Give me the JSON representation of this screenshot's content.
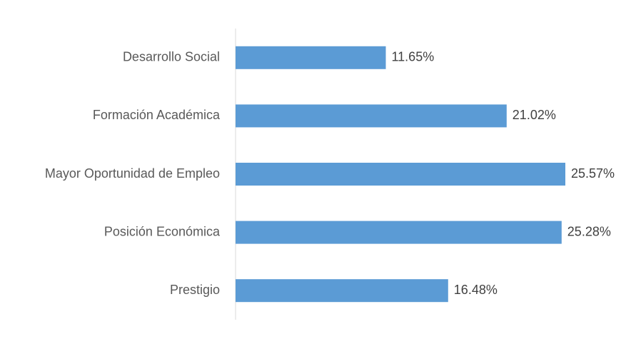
{
  "chart_data": {
    "type": "bar",
    "orientation": "horizontal",
    "title": "",
    "xlabel": "",
    "ylabel": "",
    "categories": [
      "Desarrollo Social",
      "Formación Académica",
      "Mayor Oportunidad de Empleo",
      "Posición Económica",
      "Prestigio"
    ],
    "values": [
      11.65,
      21.02,
      25.57,
      25.28,
      16.48
    ],
    "value_labels": [
      "11.65%",
      "21.02%",
      "25.57%",
      "25.28%",
      "16.48%"
    ],
    "xlim": [
      0,
      25.57
    ],
    "grid": false,
    "legend": "none",
    "bar_color": "#5b9bd5",
    "axis_color": "#d9d9d9"
  }
}
